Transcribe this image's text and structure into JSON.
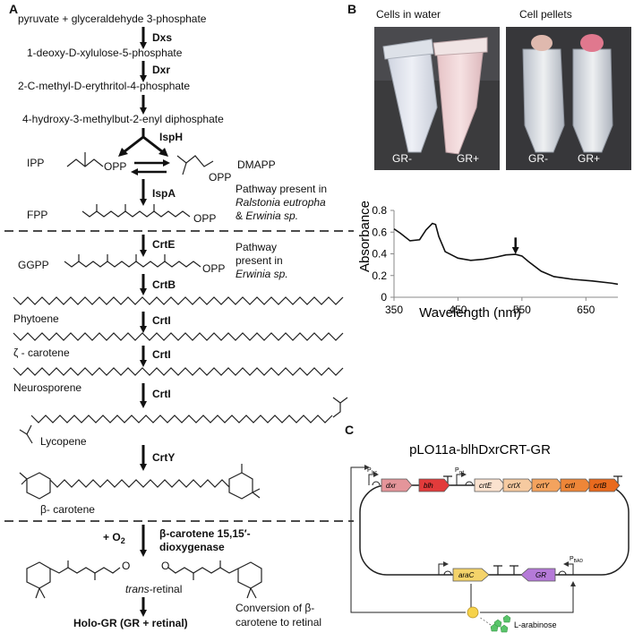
{
  "panels": {
    "a": "A",
    "b": "B",
    "c": "C"
  },
  "pathway": {
    "start": "pyruvate + glyceraldehyde 3-phosphate",
    "dxs": "Dxs",
    "dxp": "1-deoxy-D-xylulose-5-phosphate",
    "dxr": "Dxr",
    "mep": "2-C-methyl-D-erythritol-4-phosphate",
    "hmbpp": "4-hydroxy-3-methylbut-2-enyl diphosphate",
    "isph": "IspH",
    "ipp": "IPP",
    "dmapp": "DMAPP",
    "opp": "OPP",
    "ispa": "IspA",
    "fpp": "FPP",
    "note1_l1": "Pathway present in",
    "note1_l2": "Ralstonia eutropha",
    "note1_l3a": "& ",
    "note1_l3b": "Erwinia sp.",
    "crte": "CrtE",
    "ggpp": "GGPP",
    "note2_l1": "Pathway",
    "note2_l2": "present in",
    "note2_l3": "Erwinia sp.",
    "crtb": "CrtB",
    "phytoene": "Phytoene",
    "crti": "CrtI",
    "zeta": "ζ - carotene",
    "neuro": "Neurosporene",
    "lycopene": "Lycopene",
    "crty": "CrtY",
    "beta": "β- carotene",
    "o2a": "+ O",
    "o2b": "2",
    "dioxy1": "β-carotene 15,15′-",
    "dioxy2": "dioxygenase",
    "retinal_a": "trans",
    "retinal_b": "-retinal",
    "ald": "O",
    "holo": "Holo-GR (GR + retinal)",
    "conv1": "Conversion of β-",
    "conv2": "carotene to retinal"
  },
  "photos": {
    "water_title": "Cells in water",
    "pellet_title": "Cell pellets",
    "gr_minus": "GR-",
    "gr_plus": "GR+"
  },
  "chart_data": {
    "type": "line",
    "xlabel": "Wavelength (nm)",
    "ylabel": "Absorbance",
    "xlim": [
      350,
      700
    ],
    "ylim": [
      0,
      0.8
    ],
    "x_ticks": [
      350,
      450,
      550,
      650
    ],
    "y_ticks": [
      0,
      0.2,
      0.4,
      0.6,
      0.8
    ],
    "x_tick_labels": [
      "350",
      "450",
      "550",
      "650"
    ],
    "y_tick_labels": [
      "0",
      "0.2",
      "0.4",
      "0.6",
      "0.8"
    ],
    "grid": false,
    "arrow_at": 540,
    "series": [
      {
        "x": [
          350,
          360,
          375,
          390,
          400,
          410,
          415,
          420,
          430,
          450,
          470,
          490,
          510,
          525,
          540,
          550,
          560,
          580,
          600,
          630,
          660,
          690,
          700
        ],
        "y": [
          0.63,
          0.59,
          0.52,
          0.53,
          0.62,
          0.68,
          0.67,
          0.56,
          0.42,
          0.36,
          0.34,
          0.35,
          0.37,
          0.39,
          0.395,
          0.38,
          0.33,
          0.24,
          0.19,
          0.165,
          0.15,
          0.13,
          0.12
        ]
      }
    ]
  },
  "plasmid": {
    "title": "pLO11a-blhDxrCRT-GR",
    "p_lac": "P",
    "p_lac_sub": "lac",
    "p_crt_sub": "crt",
    "p_bad": "P",
    "p_bad_sub": "BAD",
    "genes": [
      "dxr",
      "blh",
      "crtE",
      "crtX",
      "crtY",
      "crtI",
      "crtB",
      "araC",
      "GR"
    ],
    "inducer": "L-arabinose"
  }
}
